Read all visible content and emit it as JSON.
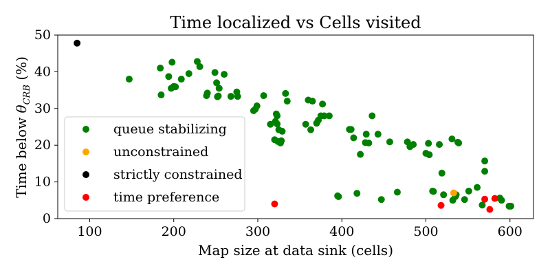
{
  "chart_data": {
    "type": "scatter",
    "title": "Time localized vs Cells visited",
    "xlabel": "Map size at data sink (cells)",
    "ylabel_prefix": "Time below ",
    "ylabel_symbol": "θ",
    "ylabel_subscript": "CRB",
    "ylabel_suffix": " (%)",
    "xlim": [
      62,
      628
    ],
    "ylim": [
      0,
      50
    ],
    "xticks": [
      100,
      200,
      300,
      400,
      500,
      600
    ],
    "yticks": [
      0,
      10,
      20,
      30,
      40,
      50
    ],
    "grid": false,
    "legend_position": "lower-left",
    "series": [
      {
        "name": "queue stabilizing",
        "color": "#008000",
        "points": [
          [
            147,
            38
          ],
          [
            184,
            41
          ],
          [
            185,
            33.7
          ],
          [
            198,
            42.6
          ],
          [
            194,
            38.7
          ],
          [
            197,
            35.5
          ],
          [
            200,
            36
          ],
          [
            202,
            35.9
          ],
          [
            209,
            38
          ],
          [
            218,
            39.5
          ],
          [
            228,
            42.8
          ],
          [
            231,
            41.4
          ],
          [
            239,
            33.5
          ],
          [
            240,
            34.2
          ],
          [
            249,
            39.8
          ],
          [
            251,
            37
          ],
          [
            252,
            33.2
          ],
          [
            254,
            35.5
          ],
          [
            253,
            33.4
          ],
          [
            260,
            39.3
          ],
          [
            268,
            33.3
          ],
          [
            275,
            34.5
          ],
          [
            276,
            33.3
          ],
          [
            295,
            29.4
          ],
          [
            297,
            29.8
          ],
          [
            299,
            30.7
          ],
          [
            307,
            33.5
          ],
          [
            315,
            25.7
          ],
          [
            320,
            21.5
          ],
          [
            321,
            26.5
          ],
          [
            323,
            28
          ],
          [
            322,
            28.5
          ],
          [
            323,
            25.8
          ],
          [
            324,
            21
          ],
          [
            325,
            24.2
          ],
          [
            327,
            20.6
          ],
          [
            329,
            23.8
          ],
          [
            328,
            21.2
          ],
          [
            333,
            34.1
          ],
          [
            335,
            32
          ],
          [
            357,
            25.7
          ],
          [
            360,
            32.3
          ],
          [
            363,
            24.2
          ],
          [
            365,
            32
          ],
          [
            370,
            26
          ],
          [
            372,
            26.8
          ],
          [
            375,
            28
          ],
          [
            377,
            31.2
          ],
          [
            379,
            28
          ],
          [
            385,
            28
          ],
          [
            409,
            24.3
          ],
          [
            411,
            24.3
          ],
          [
            414,
            22
          ],
          [
            422,
            17.5
          ],
          [
            428,
            20.7
          ],
          [
            429,
            23
          ],
          [
            432,
            20.6
          ],
          [
            436,
            28
          ],
          [
            443,
            23
          ],
          [
            457,
            20.9
          ],
          [
            478,
            20.9
          ],
          [
            481,
            19.6
          ],
          [
            485,
            20.2
          ],
          [
            500,
            17.8
          ],
          [
            504,
            17.4
          ],
          [
            503,
            20.5
          ],
          [
            516,
            20.2
          ],
          [
            519,
            12.4
          ],
          [
            531,
            21.7
          ],
          [
            538,
            20.8
          ],
          [
            539,
            20.6
          ],
          [
            570,
            15.7
          ],
          [
            570,
            12.9
          ],
          [
            395,
            6.2
          ],
          [
            396,
            6
          ],
          [
            418,
            6.9
          ],
          [
            447,
            5.2
          ],
          [
            466,
            7.2
          ],
          [
            508,
            7.5
          ],
          [
            509,
            7.4
          ],
          [
            521,
            6.5
          ],
          [
            532,
            5
          ],
          [
            535,
            6
          ],
          [
            536,
            6.5
          ],
          [
            546,
            5.2
          ],
          [
            551,
            7.5
          ],
          [
            561,
            8.5
          ],
          [
            567,
            3.7
          ],
          [
            588,
            5.6
          ],
          [
            590,
            5
          ],
          [
            599,
            3.4
          ],
          [
            601,
            3.4
          ]
        ]
      },
      {
        "name": "unconstrained",
        "color": "#FFA500",
        "points": [
          [
            533,
            7
          ]
        ]
      },
      {
        "name": "strictly constrained",
        "color": "#000000",
        "points": [
          [
            85,
            47.8
          ]
        ]
      },
      {
        "name": "time preference",
        "color": "#FF0000",
        "points": [
          [
            320,
            4
          ],
          [
            518,
            3.6
          ],
          [
            570,
            5.3
          ],
          [
            576,
            2.5
          ],
          [
            582,
            5.5
          ]
        ]
      }
    ]
  }
}
